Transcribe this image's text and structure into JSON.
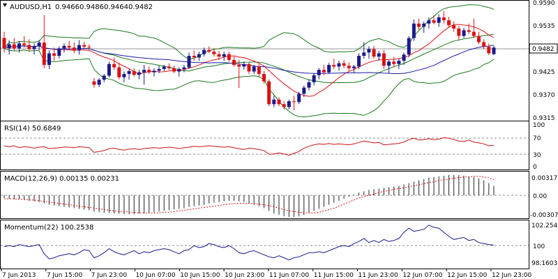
{
  "chart_data": {
    "type": "candlestick",
    "symbol": "AUDUSD,H1",
    "ohlc_header": {
      "open": "0.9466",
      "high": "0.9486",
      "low": "0.9464",
      "close": "0.9482"
    },
    "last_price_label": "0.9482",
    "price_axis_labels": [
      "0.9590",
      "0.9535",
      "0.9482",
      "0.9425",
      "0.9370",
      "0.9315"
    ],
    "price_range": [
      0.9305,
      0.9592
    ],
    "time_labels": [
      "7 Jun 2013",
      "7 Jun 15:00",
      "7 Jun 23:00",
      "10 Jun 07:00",
      "10 Jun 15:00",
      "10 Jun 23:00",
      "11 Jun 07:00",
      "11 Jun 15:00",
      "11 Jun 23:00",
      "12 Jun 07:00",
      "12 Jun 15:00",
      "12 Jun 23:00"
    ],
    "candles": [
      [
        0.9505,
        0.952,
        0.947,
        0.948
      ],
      [
        0.948,
        0.95,
        0.9465,
        0.949
      ],
      [
        0.949,
        0.9505,
        0.9475,
        0.948
      ],
      [
        0.948,
        0.9498,
        0.947,
        0.9492
      ],
      [
        0.9492,
        0.951,
        0.9482,
        0.9488
      ],
      [
        0.9488,
        0.9502,
        0.9472,
        0.9478
      ],
      [
        0.9478,
        0.9492,
        0.9465,
        0.9485
      ],
      [
        0.9485,
        0.95,
        0.9476,
        0.9494
      ],
      [
        0.9494,
        0.956,
        0.9432,
        0.944
      ],
      [
        0.944,
        0.9475,
        0.943,
        0.9468
      ],
      [
        0.9468,
        0.9482,
        0.945,
        0.9462
      ],
      [
        0.9462,
        0.9485,
        0.9455,
        0.948
      ],
      [
        0.948,
        0.9492,
        0.947,
        0.9486
      ],
      [
        0.9486,
        0.9498,
        0.9476,
        0.9482
      ],
      [
        0.9482,
        0.9495,
        0.9468,
        0.9475
      ],
      [
        0.9475,
        0.95,
        0.9465,
        0.9488
      ],
      [
        0.9488,
        0.9496,
        0.9478,
        0.9484
      ],
      [
        0.9484,
        0.949,
        0.9476,
        0.9483
      ],
      [
        0.94,
        0.9408,
        0.9385,
        0.9392
      ],
      [
        0.9392,
        0.9408,
        0.9386,
        0.9404
      ],
      [
        0.9404,
        0.9418,
        0.9398,
        0.9414
      ],
      [
        0.9414,
        0.9448,
        0.941,
        0.9442
      ],
      [
        0.9442,
        0.9458,
        0.9428,
        0.9434
      ],
      [
        0.9434,
        0.9445,
        0.9405,
        0.941
      ],
      [
        0.941,
        0.9424,
        0.9398,
        0.9418
      ],
      [
        0.9418,
        0.943,
        0.9404,
        0.9425
      ],
      [
        0.9425,
        0.9432,
        0.9412,
        0.9416
      ],
      [
        0.9416,
        0.9428,
        0.9405,
        0.9422
      ],
      [
        0.9422,
        0.944,
        0.9392,
        0.9428
      ],
      [
        0.9428,
        0.9436,
        0.9418,
        0.9422
      ],
      [
        0.9422,
        0.9432,
        0.9412,
        0.9426
      ],
      [
        0.9426,
        0.9438,
        0.942,
        0.943
      ],
      [
        0.943,
        0.944,
        0.9425,
        0.9436
      ],
      [
        0.9436,
        0.9444,
        0.9428,
        0.9432
      ],
      [
        0.9432,
        0.9438,
        0.942,
        0.9424
      ],
      [
        0.9424,
        0.9434,
        0.9412,
        0.943
      ],
      [
        0.943,
        0.944,
        0.9422,
        0.9434
      ],
      [
        0.9434,
        0.947,
        0.943,
        0.9462
      ],
      [
        0.9462,
        0.9475,
        0.945,
        0.9458
      ],
      [
        0.9458,
        0.9472,
        0.945,
        0.9466
      ],
      [
        0.9466,
        0.9482,
        0.946,
        0.9476
      ],
      [
        0.9476,
        0.9485,
        0.9468,
        0.9472
      ],
      [
        0.9472,
        0.948,
        0.946,
        0.9466
      ],
      [
        0.9466,
        0.9474,
        0.9452,
        0.946
      ],
      [
        0.946,
        0.9472,
        0.945,
        0.9466
      ],
      [
        0.9466,
        0.9472,
        0.9448,
        0.9452
      ],
      [
        0.9452,
        0.946,
        0.9436,
        0.944
      ],
      [
        0.944,
        0.9452,
        0.9384,
        0.9436
      ],
      [
        0.9436,
        0.9448,
        0.9428,
        0.9442
      ],
      [
        0.9442,
        0.9446,
        0.9418,
        0.9424
      ],
      [
        0.9424,
        0.944,
        0.9418,
        0.9436
      ],
      [
        0.9436,
        0.9442,
        0.9412,
        0.9418
      ],
      [
        0.9418,
        0.9425,
        0.9395,
        0.94
      ],
      [
        0.94,
        0.9405,
        0.934,
        0.9345
      ],
      [
        0.9345,
        0.9365,
        0.9338,
        0.9356
      ],
      [
        0.9356,
        0.9362,
        0.934,
        0.9345
      ],
      [
        0.9345,
        0.9352,
        0.9332,
        0.9338
      ],
      [
        0.9338,
        0.9356,
        0.9332,
        0.9352
      ],
      [
        0.9352,
        0.9365,
        0.933,
        0.935
      ],
      [
        0.935,
        0.9375,
        0.9345,
        0.937
      ],
      [
        0.937,
        0.939,
        0.9362,
        0.9385
      ],
      [
        0.9385,
        0.9405,
        0.9378,
        0.9398
      ],
      [
        0.9398,
        0.942,
        0.939,
        0.9415
      ],
      [
        0.9415,
        0.9432,
        0.9405,
        0.9428
      ],
      [
        0.9428,
        0.944,
        0.9415,
        0.9422
      ],
      [
        0.9422,
        0.9445,
        0.9418,
        0.944
      ],
      [
        0.944,
        0.9455,
        0.943,
        0.9436
      ],
      [
        0.9436,
        0.945,
        0.9426,
        0.9444
      ],
      [
        0.9444,
        0.9452,
        0.9432,
        0.9438
      ],
      [
        0.9438,
        0.9446,
        0.9425,
        0.9432
      ],
      [
        0.9432,
        0.944,
        0.942,
        0.9436
      ],
      [
        0.9436,
        0.9468,
        0.943,
        0.9462
      ],
      [
        0.9462,
        0.9495,
        0.9455,
        0.947
      ],
      [
        0.947,
        0.9485,
        0.9455,
        0.9478
      ],
      [
        0.9478,
        0.9486,
        0.9455,
        0.946
      ],
      [
        0.946,
        0.9474,
        0.945,
        0.9468
      ],
      [
        0.9468,
        0.9476,
        0.943,
        0.9438
      ],
      [
        0.9438,
        0.9452,
        0.942,
        0.9448
      ],
      [
        0.9448,
        0.946,
        0.9435,
        0.9442
      ],
      [
        0.9442,
        0.9456,
        0.943,
        0.945
      ],
      [
        0.945,
        0.947,
        0.944,
        0.9465
      ],
      [
        0.9465,
        0.951,
        0.9458,
        0.9505
      ],
      [
        0.9505,
        0.955,
        0.9498,
        0.954
      ],
      [
        0.954,
        0.9552,
        0.9525,
        0.9532
      ],
      [
        0.9532,
        0.9545,
        0.9518,
        0.954
      ],
      [
        0.954,
        0.9555,
        0.9528,
        0.9548
      ],
      [
        0.9548,
        0.956,
        0.9538,
        0.9542
      ],
      [
        0.9542,
        0.9562,
        0.9532,
        0.9555
      ],
      [
        0.9555,
        0.957,
        0.954,
        0.9548
      ],
      [
        0.9548,
        0.9556,
        0.953,
        0.9536
      ],
      [
        0.9536,
        0.9545,
        0.952,
        0.9528
      ],
      [
        0.9528,
        0.9534,
        0.95,
        0.951
      ],
      [
        0.951,
        0.953,
        0.9505,
        0.9524
      ],
      [
        0.9524,
        0.954,
        0.9515,
        0.952
      ],
      [
        0.952,
        0.9552,
        0.9505,
        0.951
      ],
      [
        0.951,
        0.952,
        0.949,
        0.9495
      ],
      [
        0.9495,
        0.9502,
        0.9478,
        0.9484
      ],
      [
        0.9484,
        0.9492,
        0.9464,
        0.9468
      ],
      [
        0.9466,
        0.9486,
        0.9464,
        0.9482
      ]
    ],
    "rsi": {
      "label": "RSI(14) 50.6849",
      "axis_labels": [
        "100",
        "70",
        "30",
        "0"
      ],
      "levels": [
        70,
        30
      ],
      "range": [
        0,
        100
      ],
      "values": [
        50,
        48,
        50,
        46,
        48,
        47,
        45,
        47,
        48,
        44,
        45,
        46,
        47,
        47,
        46,
        48,
        47,
        46,
        36,
        38,
        40,
        44,
        45,
        42,
        41,
        43,
        44,
        42,
        44,
        45,
        46,
        45,
        46,
        47,
        46,
        44,
        46,
        47,
        49,
        48,
        49,
        50,
        49,
        48,
        47,
        48,
        46,
        44,
        42,
        45,
        44,
        42,
        40,
        32,
        33,
        35,
        33,
        30,
        34,
        38,
        45,
        49,
        52,
        54,
        53,
        55,
        53,
        54,
        53,
        52,
        54,
        57,
        60,
        58,
        56,
        57,
        52,
        53,
        54,
        55,
        58,
        63,
        66,
        62,
        63,
        65,
        63,
        64,
        67,
        66,
        63,
        60,
        59,
        62,
        58,
        56,
        54,
        50,
        51
      ]
    },
    "macd": {
      "label": "MACD(12,26,9) 0.00135 0.00231",
      "axis_labels": [
        "0.00317",
        "0.00",
        "-0.00307"
      ],
      "range": [
        -0.0034,
        0.0034
      ],
      "main": [
        -0.0004,
        -0.0005,
        -0.0006,
        -0.0006,
        -0.0007,
        -0.0008,
        -0.0009,
        -0.001,
        -0.0012,
        -0.0014,
        -0.0015,
        -0.0016,
        -0.0017,
        -0.0018,
        -0.0019,
        -0.002,
        -0.0021,
        -0.0022,
        -0.0024,
        -0.0025,
        -0.0026,
        -0.0026,
        -0.0027,
        -0.0027,
        -0.0028,
        -0.0028,
        -0.0028,
        -0.0027,
        -0.0027,
        -0.0026,
        -0.0025,
        -0.0024,
        -0.0023,
        -0.0022,
        -0.0021,
        -0.002,
        -0.0019,
        -0.0017,
        -0.0016,
        -0.0015,
        -0.0014,
        -0.0012,
        -0.0011,
        -0.001,
        -0.0009,
        -0.0008,
        -0.0008,
        -0.0009,
        -0.001,
        -0.0012,
        -0.0014,
        -0.0016,
        -0.0019,
        -0.0023,
        -0.0027,
        -0.0029,
        -0.0031,
        -0.0032,
        -0.0032,
        -0.0031,
        -0.0029,
        -0.0026,
        -0.0023,
        -0.002,
        -0.0017,
        -0.0014,
        -0.0011,
        -0.0008,
        -0.0005,
        -0.0002,
        0.0001,
        0.0004,
        0.0006,
        0.0008,
        0.0009,
        0.001,
        0.0011,
        0.0012,
        0.0013,
        0.0014,
        0.0016,
        0.0018,
        0.002,
        0.0022,
        0.0024,
        0.0026,
        0.0027,
        0.0028,
        0.0029,
        0.003,
        0.003,
        0.003,
        0.0029,
        0.0028,
        0.0027,
        0.0025,
        0.0022,
        0.0018,
        0.0014
      ],
      "signal": [
        -0.0005,
        -0.0005,
        -0.0005,
        -0.0006,
        -0.0006,
        -0.0007,
        -0.0007,
        -0.0008,
        -0.0009,
        -0.001,
        -0.0011,
        -0.0012,
        -0.0013,
        -0.0014,
        -0.0015,
        -0.0016,
        -0.0017,
        -0.0018,
        -0.0019,
        -0.002,
        -0.0021,
        -0.0022,
        -0.0023,
        -0.0024,
        -0.0024,
        -0.0025,
        -0.0025,
        -0.0026,
        -0.0026,
        -0.0026,
        -0.0026,
        -0.0026,
        -0.0025,
        -0.0025,
        -0.0024,
        -0.0023,
        -0.0022,
        -0.0021,
        -0.002,
        -0.0019,
        -0.0018,
        -0.0017,
        -0.0016,
        -0.0015,
        -0.0014,
        -0.0013,
        -0.0012,
        -0.0012,
        -0.0012,
        -0.0012,
        -0.0012,
        -0.0013,
        -0.0014,
        -0.0015,
        -0.0017,
        -0.0019,
        -0.0021,
        -0.0023,
        -0.0024,
        -0.0025,
        -0.0026,
        -0.0026,
        -0.0026,
        -0.0025,
        -0.0023,
        -0.0021,
        -0.0019,
        -0.0016,
        -0.0013,
        -0.001,
        -0.0007,
        -0.0004,
        -0.0002,
        0.0,
        0.0002,
        0.0004,
        0.0006,
        0.0007,
        0.0009,
        0.001,
        0.0011,
        0.0013,
        0.0014,
        0.0016,
        0.0017,
        0.0019,
        0.002,
        0.0022,
        0.0023,
        0.0024,
        0.0025,
        0.0026,
        0.0027,
        0.0027,
        0.0028,
        0.0028,
        0.0027,
        0.0026,
        0.0023
      ]
    },
    "momentum": {
      "label": "Momentum(22) 100.2538",
      "axis_labels": [
        "102.2542",
        "100",
        "98.1603"
      ],
      "level": 100,
      "range": [
        97.95,
        102.6
      ],
      "values": [
        100.1,
        100.2,
        100.1,
        100.3,
        100.2,
        100.1,
        100.2,
        100.3,
        99.4,
        98.9,
        99.0,
        99.2,
        99.3,
        99.4,
        99.3,
        99.5,
        99.8,
        99.7,
        99.0,
        99.2,
        99.5,
        99.9,
        99.6,
        99.4,
        99.3,
        99.5,
        99.7,
        99.4,
        99.6,
        99.5,
        99.7,
        99.8,
        99.9,
        99.8,
        99.6,
        99.4,
        99.7,
        99.8,
        100.2,
        100.0,
        100.1,
        100.4,
        100.3,
        100.1,
        100.0,
        100.2,
        99.9,
        99.5,
        99.4,
        99.6,
        99.7,
        99.5,
        99.3,
        99.1,
        99.0,
        99.2,
        99.0,
        98.8,
        99.0,
        99.1,
        99.3,
        99.5,
        99.5,
        99.6,
        99.5,
        99.7,
        99.9,
        100.1,
        100.2,
        100.1,
        100.4,
        100.6,
        100.9,
        100.5,
        100.7,
        100.5,
        100.8,
        100.6,
        100.7,
        100.9,
        101.5,
        101.9,
        101.6,
        101.7,
        101.8,
        102.2,
        102.0,
        101.9,
        101.5,
        101.1,
        100.8,
        100.9,
        101.0,
        100.7,
        100.8,
        100.5,
        100.4,
        100.3,
        100.25
      ]
    }
  }
}
